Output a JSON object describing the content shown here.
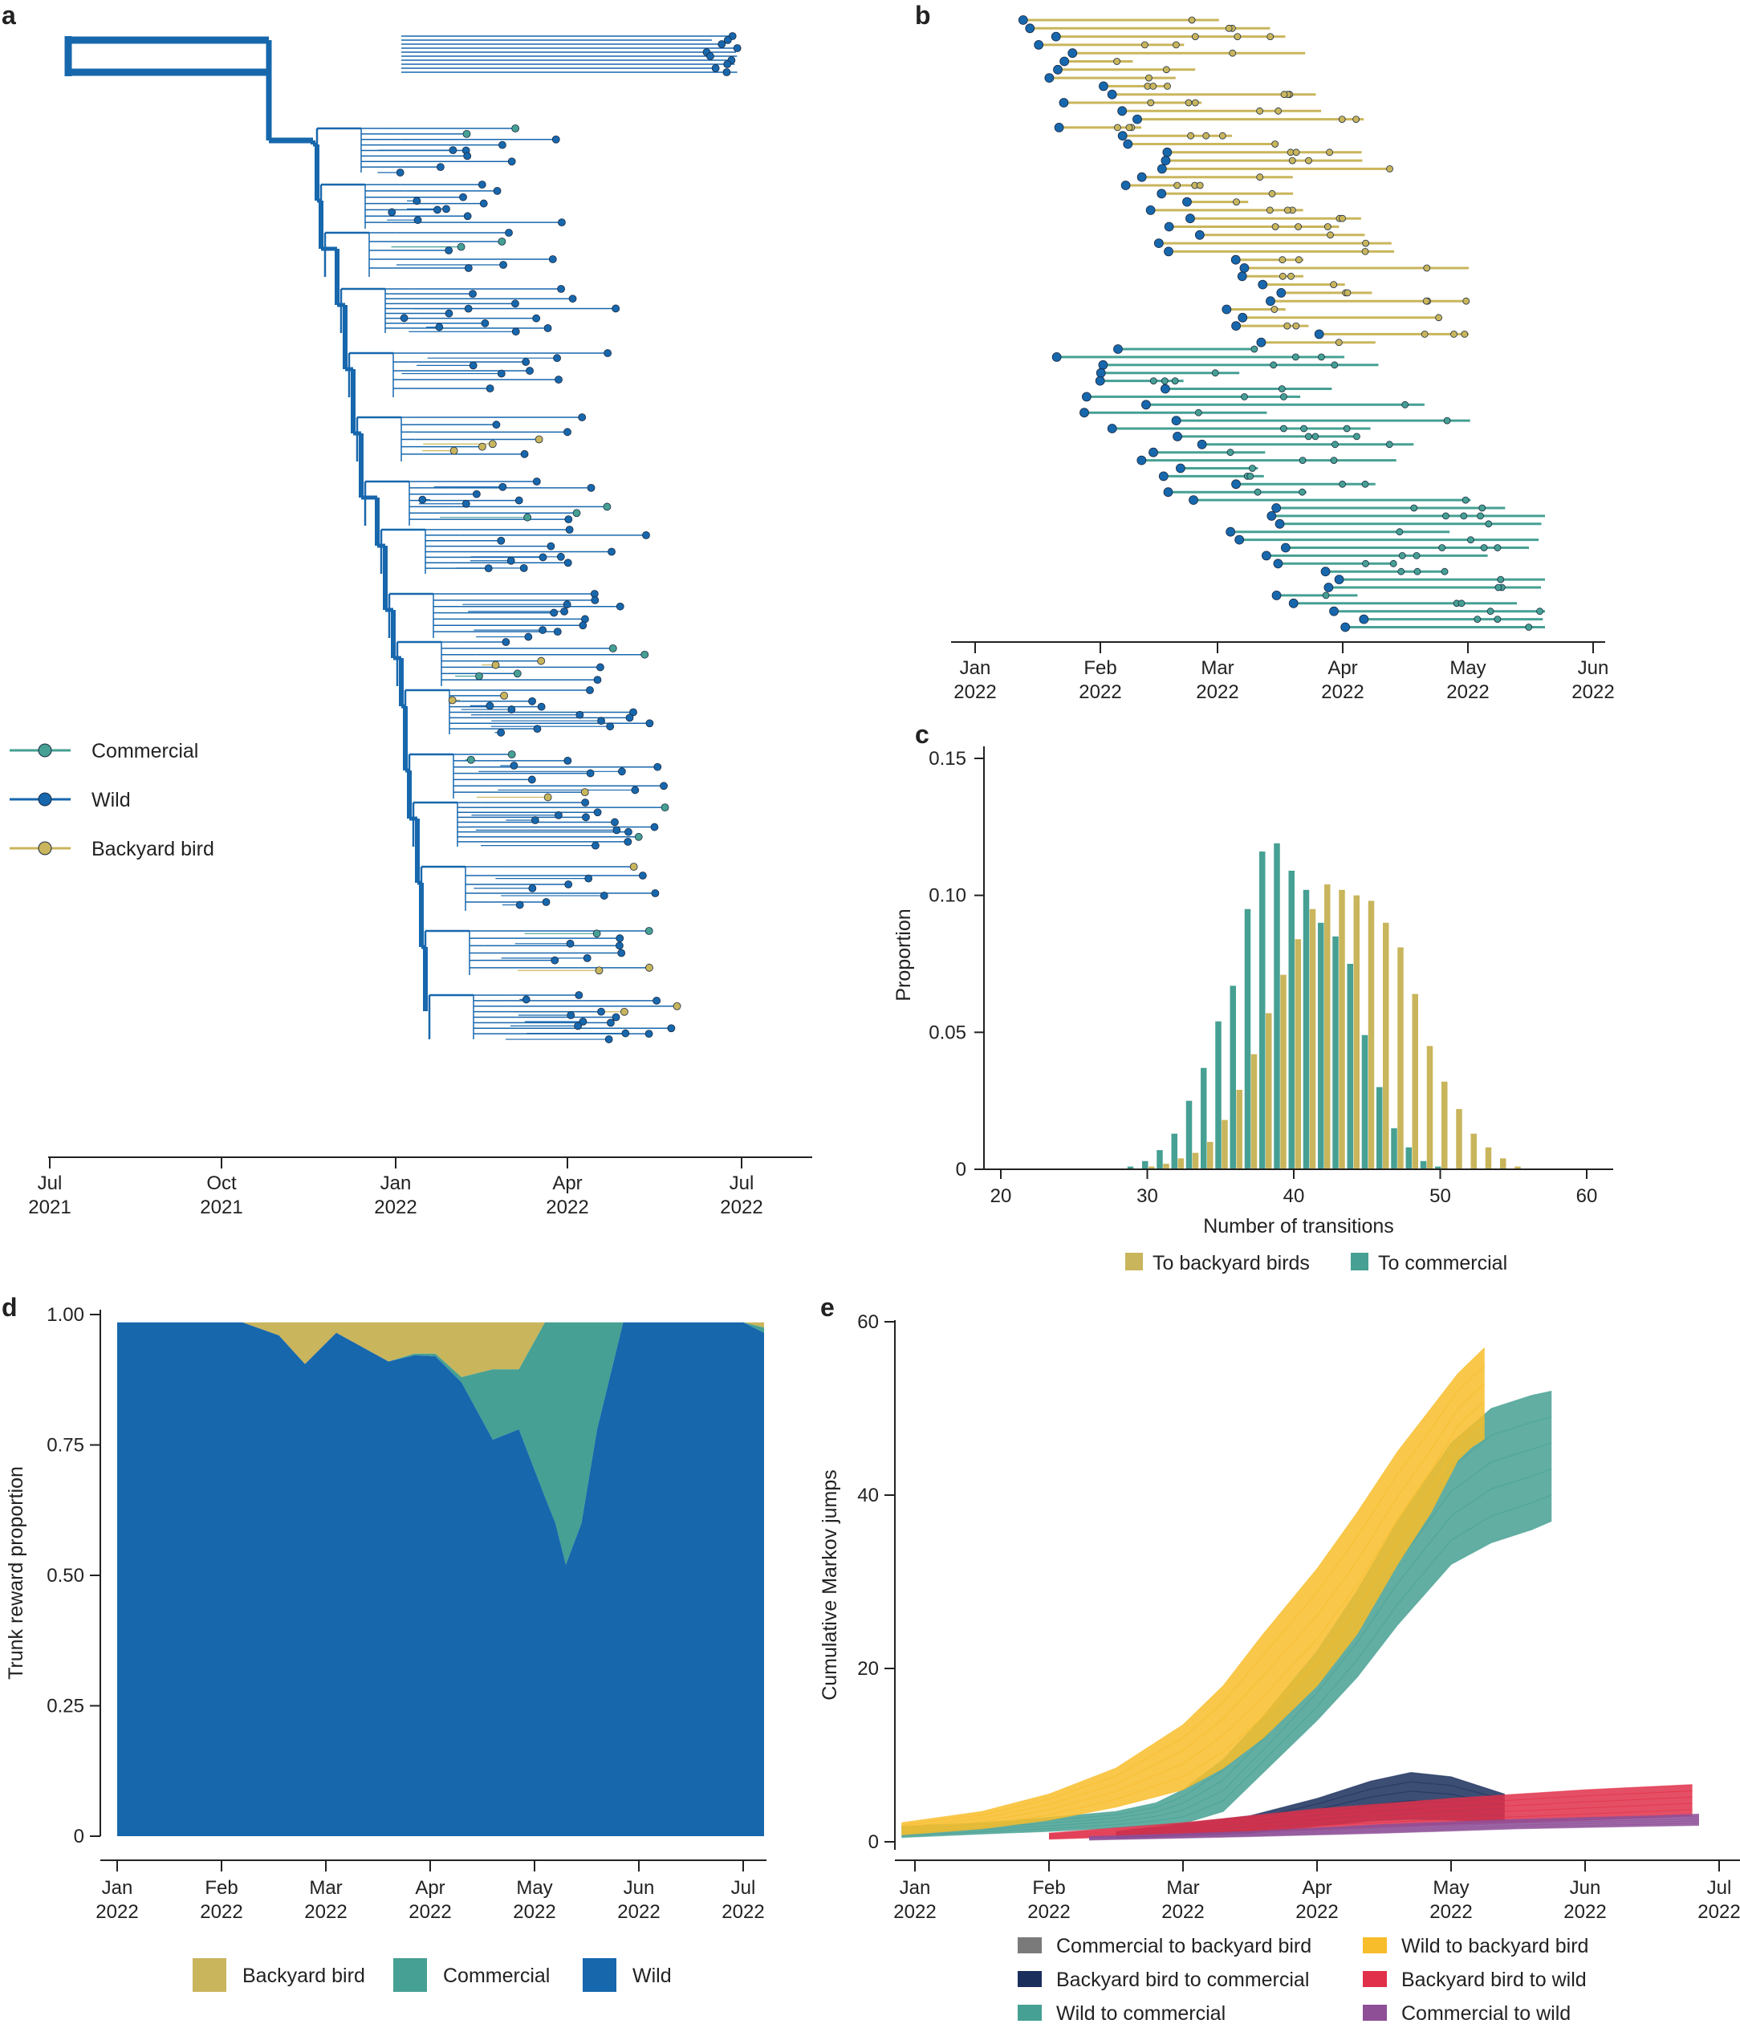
{
  "colors": {
    "wild": "#1767ad",
    "commercial": "#46a093",
    "backyard": "#c9b55c",
    "wild_to_backyard": "#f8bd2a",
    "wild_to_commercial": "#46a093",
    "commercial_to_backyard": "#7a7a7a",
    "backyard_to_commercial": "#1b2f5c",
    "backyard_to_wild": "#e0304a",
    "commercial_to_wild": "#8e4f97"
  },
  "chart_data": [
    {
      "panel": "a",
      "type": "phylogenetic-tree",
      "x_tick_labels": [
        [
          "Jul",
          "2021"
        ],
        [
          "Oct",
          "2021"
        ],
        [
          "Jan",
          "2022"
        ],
        [
          "Apr",
          "2022"
        ],
        [
          "Jul",
          "2022"
        ]
      ],
      "legend": [
        {
          "key": "commercial",
          "label": "Commercial"
        },
        {
          "key": "wild",
          "label": "Wild"
        },
        {
          "key": "backyard",
          "label": "Backyard bird"
        }
      ]
    },
    {
      "panel": "b",
      "type": "timeline",
      "x_tick_labels": [
        [
          "Jan",
          "2022"
        ],
        [
          "Feb",
          "2022"
        ],
        [
          "Mar",
          "2022"
        ],
        [
          "Apr",
          "2022"
        ],
        [
          "May",
          "2022"
        ],
        [
          "Jun",
          "2022"
        ]
      ],
      "groups": [
        "backyard",
        "commercial"
      ]
    },
    {
      "panel": "c",
      "type": "bar",
      "xlabel": "Number of transitions",
      "ylabel": "Proportion",
      "xlim": [
        18,
        62
      ],
      "ylim": [
        0,
        0.155
      ],
      "x_ticks": [
        20,
        30,
        40,
        50,
        60
      ],
      "y_ticks": [
        0,
        0.05,
        0.1,
        0.15
      ],
      "y_tick_labels": [
        "0",
        "0.05",
        "0.10",
        "0.15"
      ],
      "x": [
        29,
        30,
        31,
        32,
        33,
        34,
        35,
        36,
        37,
        38,
        39,
        40,
        41,
        42,
        43,
        44,
        45,
        46,
        47,
        48,
        49,
        50,
        51,
        52,
        53,
        54,
        55
      ],
      "series": [
        {
          "name": "To backyard birds",
          "key": "backyard",
          "values": [
            0,
            0.001,
            0.002,
            0.004,
            0.006,
            0.01,
            0.018,
            0.029,
            0.042,
            0.057,
            0.071,
            0.084,
            0.095,
            0.104,
            0.102,
            0.1,
            0.098,
            0.09,
            0.081,
            0.064,
            0.045,
            0.032,
            0.022,
            0.013,
            0.008,
            0.004,
            0.001
          ]
        },
        {
          "name": "To commercial",
          "key": "commercial",
          "values": [
            0.001,
            0.003,
            0.007,
            0.013,
            0.025,
            0.037,
            0.054,
            0.067,
            0.095,
            0.116,
            0.119,
            0.109,
            0.102,
            0.09,
            0.085,
            0.075,
            0.049,
            0.03,
            0.015,
            0.008,
            0.003,
            0.001,
            0,
            0,
            0,
            0,
            0
          ]
        }
      ]
    },
    {
      "panel": "d",
      "type": "area",
      "ylabel": "Trunk reward proportion",
      "ylim": [
        0,
        1
      ],
      "y_ticks": [
        0,
        0.25,
        0.5,
        0.75,
        1
      ],
      "y_tick_labels": [
        "0",
        "0.25",
        "0.50",
        "0.75",
        "1.00"
      ],
      "x_month": [
        0,
        1,
        2,
        3,
        4,
        5,
        6
      ],
      "x_tick_labels": [
        [
          "Jan",
          "2022"
        ],
        [
          "Feb",
          "2022"
        ],
        [
          "Mar",
          "2022"
        ],
        [
          "Apr",
          "2022"
        ],
        [
          "May",
          "2022"
        ],
        [
          "Jun",
          "2022"
        ],
        [
          "Jul",
          "2022"
        ]
      ],
      "t": [
        0,
        0.5,
        1.0,
        1.2,
        1.55,
        1.8,
        2.1,
        2.6,
        2.85,
        3.05,
        3.3,
        3.6,
        3.85,
        4.1,
        4.2,
        4.3,
        4.45,
        4.6,
        4.85,
        5.0,
        5.5,
        6.0,
        6.2
      ],
      "wild_top": [
        0.985,
        0.985,
        0.985,
        0.985,
        0.96,
        0.905,
        0.965,
        0.91,
        0.922,
        0.92,
        0.87,
        0.76,
        0.78,
        0.65,
        0.6,
        0.52,
        0.6,
        0.78,
        0.985,
        0.985,
        0.985,
        0.985,
        0.965
      ],
      "commercial_top": [
        0.985,
        0.985,
        0.985,
        0.985,
        0.96,
        0.905,
        0.965,
        0.91,
        0.925,
        0.925,
        0.88,
        0.895,
        0.895,
        0.985,
        0.985,
        0.985,
        0.985,
        0.985,
        0.985,
        0.985,
        0.985,
        0.985,
        0.975
      ],
      "backyard_top": [
        0.985,
        0.985,
        0.985,
        0.985,
        0.985,
        0.985,
        0.985,
        0.985,
        0.985,
        0.985,
        0.985,
        0.985,
        0.985,
        0.985,
        0.985,
        0.985,
        0.985,
        0.985,
        0.985,
        0.985,
        0.985,
        0.985,
        0.985
      ],
      "legend": [
        {
          "key": "backyard",
          "label": "Backyard bird"
        },
        {
          "key": "commercial",
          "label": "Commercial"
        },
        {
          "key": "wild",
          "label": "Wild"
        }
      ]
    },
    {
      "panel": "e",
      "type": "line",
      "ylabel": "Cumulative Markov jumps",
      "ylim": [
        -2,
        60
      ],
      "y_ticks": [
        0,
        20,
        40,
        60
      ],
      "x_month": [
        0,
        1,
        2,
        3,
        4,
        5,
        6
      ],
      "x_tick_labels": [
        [
          "Jan",
          "2022"
        ],
        [
          "Feb",
          "2022"
        ],
        [
          "Mar",
          "2022"
        ],
        [
          "Apr",
          "2022"
        ],
        [
          "May",
          "2022"
        ],
        [
          "Jun",
          "2022"
        ],
        [
          "Jul",
          "2022"
        ]
      ],
      "bands": [
        {
          "name": "Wild to commercial",
          "key": "wild_to_commercial",
          "t": [
            -0.1,
            0.5,
            1.0,
            1.5,
            1.8,
            2.0,
            2.3,
            2.6,
            3.0,
            3.3,
            3.6,
            4.0,
            4.3,
            4.6,
            4.75
          ],
          "lower": [
            0.5,
            0.9,
            1.2,
            1.6,
            1.9,
            2.1,
            3.5,
            8.0,
            14.0,
            19.0,
            25.0,
            32.0,
            34.5,
            36.0,
            37.0
          ],
          "upper": [
            1.8,
            2.2,
            2.8,
            3.5,
            4.5,
            6.0,
            9.5,
            14.5,
            22.0,
            29.0,
            37.0,
            46.0,
            50.0,
            51.5,
            52.0
          ]
        },
        {
          "name": "Wild to backyard bird",
          "key": "wild_to_backyard",
          "t": [
            -0.1,
            0.5,
            1.0,
            1.5,
            2.0,
            2.3,
            2.6,
            3.0,
            3.3,
            3.6,
            3.85,
            4.05,
            4.15,
            4.25
          ],
          "lower": [
            0.8,
            1.5,
            2.5,
            4.0,
            6.0,
            8.5,
            12.0,
            18.0,
            24.0,
            32.0,
            38.0,
            44.0,
            45.5,
            46.5
          ],
          "upper": [
            2.2,
            3.5,
            5.5,
            8.5,
            13.5,
            18.0,
            24.0,
            31.5,
            38.0,
            45.0,
            50.0,
            54.0,
            55.5,
            57.0
          ]
        },
        {
          "name": "Backyard bird to commercial",
          "key": "backyard_to_commercial",
          "t": [
            1.5,
            2.5,
            3.0,
            3.4,
            3.7,
            4.0,
            4.2,
            4.4
          ],
          "lower": [
            0.4,
            1.0,
            1.8,
            2.4,
            2.6,
            2.5,
            2.4,
            2.4
          ],
          "upper": [
            1.2,
            3.0,
            5.0,
            7.0,
            8.0,
            7.5,
            6.5,
            5.5
          ]
        },
        {
          "name": "Backyard bird to wild",
          "key": "backyard_to_wild",
          "t": [
            1.0,
            2.0,
            3.0,
            4.0,
            5.0,
            5.8
          ],
          "lower": [
            0.3,
            0.8,
            1.4,
            2.0,
            2.5,
            3.0
          ],
          "upper": [
            1.0,
            2.2,
            3.8,
            5.0,
            6.0,
            6.6
          ]
        },
        {
          "name": "Commercial to wild",
          "key": "commercial_to_wild",
          "t": [
            1.3,
            2.5,
            3.5,
            4.5,
            5.5,
            5.85
          ],
          "lower": [
            0.2,
            0.6,
            1.0,
            1.5,
            1.8,
            1.9
          ],
          "upper": [
            0.6,
            1.2,
            2.0,
            2.6,
            3.0,
            3.2
          ]
        }
      ],
      "legend": [
        {
          "key": "commercial_to_backyard",
          "label": "Commercial to backyard bird"
        },
        {
          "key": "wild_to_backyard",
          "label": "Wild to backyard bird"
        },
        {
          "key": "backyard_to_commercial",
          "label": "Backyard bird to commercial"
        },
        {
          "key": "backyard_to_wild",
          "label": "Backyard bird to wild"
        },
        {
          "key": "wild_to_commercial",
          "label": "Wild to commercial"
        },
        {
          "key": "commercial_to_wild",
          "label": "Commercial to wild"
        }
      ]
    }
  ],
  "panel_labels": {
    "a": "a",
    "b": "b",
    "c": "c",
    "d": "d",
    "e": "e"
  }
}
